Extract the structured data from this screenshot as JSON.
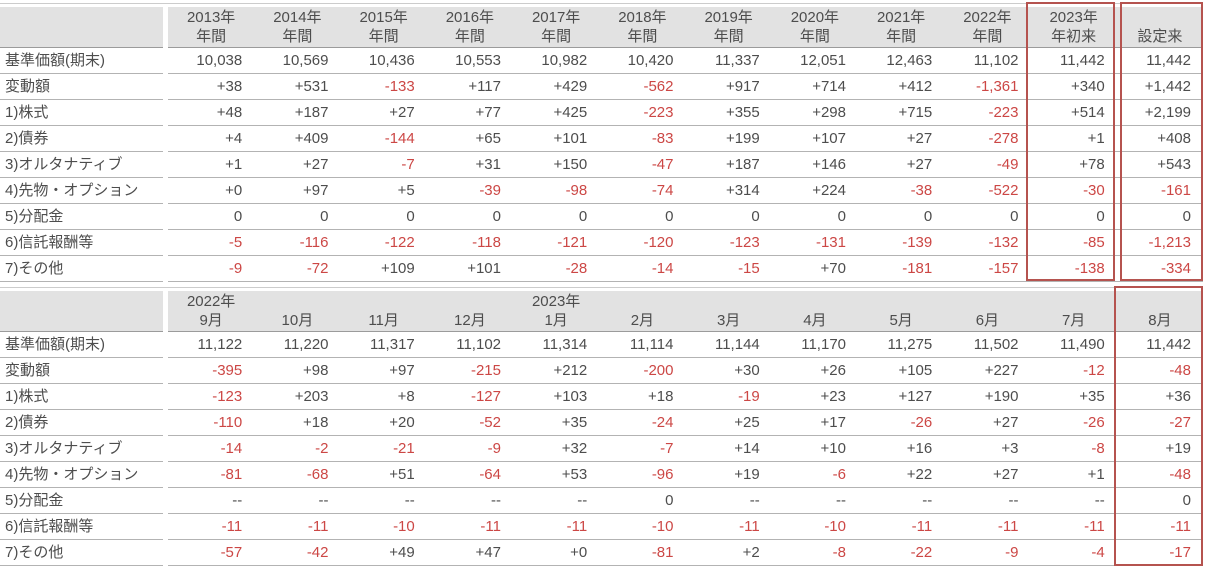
{
  "style": {
    "highlight_border": "#b5534f",
    "negative_text": "#cc4745",
    "normal_text": "#4d4d4d",
    "header_background": "#e2e2e2",
    "row_line": "#b3b3b3",
    "header_line": "#9b9b9b"
  },
  "tables": [
    {
      "id": "annual",
      "columns": [
        {
          "top": "2013年",
          "bottom": "年間",
          "highlight": false
        },
        {
          "top": "2014年",
          "bottom": "年間",
          "highlight": false
        },
        {
          "top": "2015年",
          "bottom": "年間",
          "highlight": false
        },
        {
          "top": "2016年",
          "bottom": "年間",
          "highlight": false
        },
        {
          "top": "2017年",
          "bottom": "年間",
          "highlight": false
        },
        {
          "top": "2018年",
          "bottom": "年間",
          "highlight": false
        },
        {
          "top": "2019年",
          "bottom": "年間",
          "highlight": false
        },
        {
          "top": "2020年",
          "bottom": "年間",
          "highlight": false
        },
        {
          "top": "2021年",
          "bottom": "年間",
          "highlight": false
        },
        {
          "top": "2022年",
          "bottom": "年間",
          "highlight": false
        },
        {
          "top": "2023年",
          "bottom": "年初来",
          "highlight": true
        },
        {
          "top": "",
          "bottom": "設定来",
          "highlight": true
        }
      ],
      "rows": [
        {
          "label": "基準価額(期末)",
          "values": [
            "10,038",
            "10,569",
            "10,436",
            "10,553",
            "10,982",
            "10,420",
            "11,337",
            "12,051",
            "12,463",
            "11,102",
            "11,442",
            "11,442"
          ]
        },
        {
          "label": "変動額",
          "values": [
            "+38",
            "+531",
            "-133",
            "+117",
            "+429",
            "-562",
            "+917",
            "+714",
            "+412",
            "-1,361",
            "+340",
            "+1,442"
          ]
        },
        {
          "label": "1)株式",
          "values": [
            "+48",
            "+187",
            "+27",
            "+77",
            "+425",
            "-223",
            "+355",
            "+298",
            "+715",
            "-223",
            "+514",
            "+2,199"
          ]
        },
        {
          "label": "2)債券",
          "values": [
            "+4",
            "+409",
            "-144",
            "+65",
            "+101",
            "-83",
            "+199",
            "+107",
            "+27",
            "-278",
            "+1",
            "+408"
          ]
        },
        {
          "label": "3)オルタナティブ",
          "values": [
            "+1",
            "+27",
            "-7",
            "+31",
            "+150",
            "-47",
            "+187",
            "+146",
            "+27",
            "-49",
            "+78",
            "+543"
          ]
        },
        {
          "label": "4)先物・オプション",
          "values": [
            "+0",
            "+97",
            "+5",
            "-39",
            "-98",
            "-74",
            "+314",
            "+224",
            "-38",
            "-522",
            "-30",
            "-161"
          ]
        },
        {
          "label": "5)分配金",
          "values": [
            "0",
            "0",
            "0",
            "0",
            "0",
            "0",
            "0",
            "0",
            "0",
            "0",
            "0",
            "0"
          ]
        },
        {
          "label": "6)信託報酬等",
          "values": [
            "-5",
            "-116",
            "-122",
            "-118",
            "-121",
            "-120",
            "-123",
            "-131",
            "-139",
            "-132",
            "-85",
            "-1,213"
          ]
        },
        {
          "label": "7)その他",
          "values": [
            "-9",
            "-72",
            "+109",
            "+101",
            "-28",
            "-14",
            "-15",
            "+70",
            "-181",
            "-157",
            "-138",
            "-334"
          ]
        }
      ]
    },
    {
      "id": "monthly",
      "columns": [
        {
          "top": "2022年",
          "bottom": "9月",
          "highlight": false
        },
        {
          "top": "",
          "bottom": "10月",
          "highlight": false
        },
        {
          "top": "",
          "bottom": "11月",
          "highlight": false
        },
        {
          "top": "",
          "bottom": "12月",
          "highlight": false
        },
        {
          "top": "2023年",
          "bottom": "1月",
          "highlight": false
        },
        {
          "top": "",
          "bottom": "2月",
          "highlight": false
        },
        {
          "top": "",
          "bottom": "3月",
          "highlight": false
        },
        {
          "top": "",
          "bottom": "4月",
          "highlight": false
        },
        {
          "top": "",
          "bottom": "5月",
          "highlight": false
        },
        {
          "top": "",
          "bottom": "6月",
          "highlight": false
        },
        {
          "top": "",
          "bottom": "7月",
          "highlight": false
        },
        {
          "top": "",
          "bottom": "8月",
          "highlight": true
        }
      ],
      "rows": [
        {
          "label": "基準価額(期末)",
          "values": [
            "11,122",
            "11,220",
            "11,317",
            "11,102",
            "11,314",
            "11,114",
            "11,144",
            "11,170",
            "11,275",
            "11,502",
            "11,490",
            "11,442"
          ]
        },
        {
          "label": "変動額",
          "values": [
            "-395",
            "+98",
            "+97",
            "-215",
            "+212",
            "-200",
            "+30",
            "+26",
            "+105",
            "+227",
            "-12",
            "-48"
          ]
        },
        {
          "label": "1)株式",
          "values": [
            "-123",
            "+203",
            "+8",
            "-127",
            "+103",
            "+18",
            "-19",
            "+23",
            "+127",
            "+190",
            "+35",
            "+36"
          ]
        },
        {
          "label": "2)債券",
          "values": [
            "-110",
            "+18",
            "+20",
            "-52",
            "+35",
            "-24",
            "+25",
            "+17",
            "-26",
            "+27",
            "-26",
            "-27"
          ]
        },
        {
          "label": "3)オルタナティブ",
          "values": [
            "-14",
            "-2",
            "-21",
            "-9",
            "+32",
            "-7",
            "+14",
            "+10",
            "+16",
            "+3",
            "-8",
            "+19"
          ]
        },
        {
          "label": "4)先物・オプション",
          "values": [
            "-81",
            "-68",
            "+51",
            "-64",
            "+53",
            "-96",
            "+19",
            "-6",
            "+22",
            "+27",
            "+1",
            "-48"
          ]
        },
        {
          "label": "5)分配金",
          "values": [
            "--",
            "--",
            "--",
            "--",
            "--",
            "0",
            "--",
            "--",
            "--",
            "--",
            "--",
            "0"
          ]
        },
        {
          "label": "6)信託報酬等",
          "values": [
            "-11",
            "-11",
            "-10",
            "-11",
            "-11",
            "-10",
            "-11",
            "-10",
            "-11",
            "-11",
            "-11",
            "-11"
          ]
        },
        {
          "label": "7)その他",
          "values": [
            "-57",
            "-42",
            "+49",
            "+47",
            "+0",
            "-81",
            "+2",
            "-8",
            "-22",
            "-9",
            "-4",
            "-17"
          ]
        }
      ]
    }
  ]
}
